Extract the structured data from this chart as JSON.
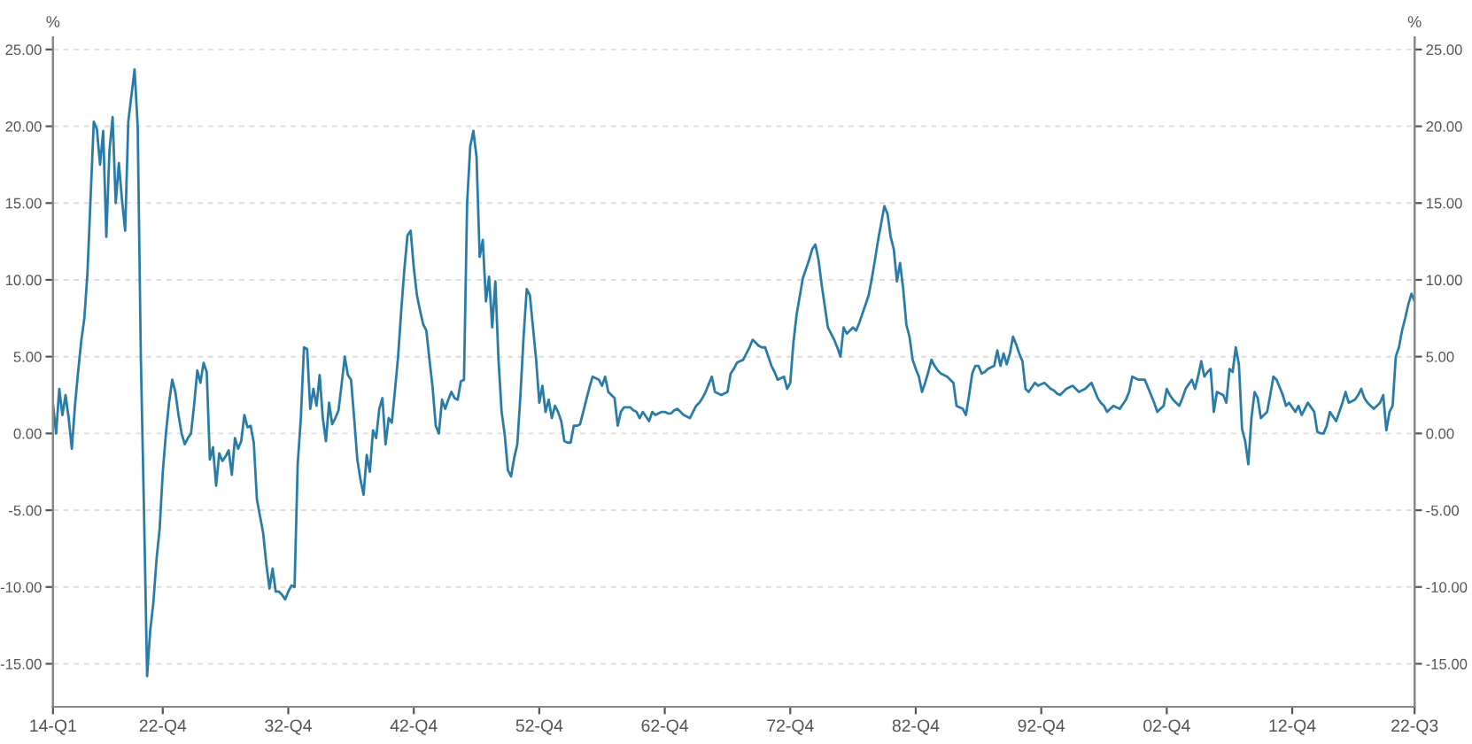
{
  "chart_data": {
    "type": "line",
    "ylabel": "%",
    "y2label": "%",
    "grid": "y",
    "line_style": "solid",
    "categories": [
      "14-Q1",
      null,
      null,
      null,
      null,
      null,
      null,
      null,
      null,
      null,
      null,
      null,
      null,
      null,
      null,
      null,
      null,
      null,
      null,
      null,
      null,
      null,
      null,
      null,
      null,
      null,
      null,
      null,
      null,
      null,
      null,
      null,
      null,
      null,
      null,
      "22-Q4",
      null,
      null,
      null,
      null,
      null,
      null,
      null,
      null,
      null,
      null,
      null,
      null,
      null,
      null,
      null,
      null,
      null,
      null,
      null,
      null,
      null,
      null,
      null,
      null,
      null,
      null,
      null,
      null,
      null,
      null,
      null,
      null,
      null,
      null,
      null,
      null,
      null,
      null,
      null,
      "32-Q4",
      null,
      null,
      null,
      null,
      null,
      null,
      null,
      null,
      null,
      null,
      null,
      null,
      null,
      null,
      null,
      null,
      null,
      null,
      null,
      null,
      null,
      null,
      null,
      null,
      null,
      null,
      null,
      null,
      null,
      null,
      null,
      null,
      null,
      null,
      null,
      null,
      null,
      null,
      null,
      "42-Q4",
      null,
      null,
      null,
      null,
      null,
      null,
      null,
      null,
      null,
      null,
      null,
      null,
      null,
      null,
      null,
      null,
      null,
      null,
      null,
      null,
      null,
      null,
      null,
      null,
      null,
      null,
      null,
      null,
      null,
      null,
      null,
      null,
      null,
      null,
      null,
      null,
      null,
      null,
      null,
      "52-Q4",
      null,
      null,
      null,
      null,
      null,
      null,
      null,
      null,
      null,
      null,
      null,
      null,
      null,
      null,
      null,
      null,
      null,
      null,
      null,
      null,
      null,
      null,
      null,
      null,
      null,
      null,
      null,
      null,
      null,
      null,
      null,
      null,
      null,
      null,
      null,
      null,
      null,
      null,
      null,
      "62-Q4",
      null,
      null,
      null,
      null,
      null,
      null,
      null,
      null,
      null,
      null,
      null,
      null,
      null,
      null,
      null,
      null,
      null,
      null,
      null,
      null,
      null,
      null,
      null,
      null,
      null,
      null,
      null,
      null,
      null,
      null,
      null,
      null,
      null,
      null,
      null,
      null,
      null,
      null,
      null,
      "72-Q4",
      null,
      null,
      null,
      null,
      null,
      null,
      null,
      null,
      null,
      null,
      null,
      null,
      null,
      null,
      null,
      null,
      null,
      null,
      null,
      null,
      null,
      null,
      null,
      null,
      null,
      null,
      null,
      null,
      null,
      null,
      null,
      null,
      null,
      null,
      null,
      null,
      null,
      null,
      null,
      "82-Q4",
      null,
      null,
      null,
      null,
      null,
      null,
      null,
      null,
      null,
      null,
      null,
      null,
      null,
      null,
      null,
      null,
      null,
      null,
      null,
      null,
      null,
      null,
      null,
      null,
      null,
      null,
      null,
      null,
      null,
      null,
      null,
      null,
      null,
      null,
      null,
      null,
      null,
      null,
      null,
      "92-Q4",
      null,
      null,
      null,
      null,
      null,
      null,
      null,
      null,
      null,
      null,
      null,
      null,
      null,
      null,
      null,
      null,
      null,
      null,
      null,
      null,
      null,
      null,
      null,
      null,
      null,
      null,
      null,
      null,
      null,
      null,
      null,
      null,
      null,
      null,
      null,
      null,
      null,
      null,
      null,
      "02-Q4",
      null,
      null,
      null,
      null,
      null,
      null,
      null,
      null,
      null,
      null,
      null,
      null,
      null,
      null,
      null,
      null,
      null,
      null,
      null,
      null,
      null,
      null,
      null,
      null,
      null,
      null,
      null,
      null,
      null,
      null,
      null,
      null,
      null,
      null,
      null,
      null,
      null,
      null,
      null,
      "12-Q4",
      null,
      null,
      null,
      null,
      null,
      null,
      null,
      null,
      null,
      null,
      null,
      null,
      null,
      null,
      null,
      null,
      null,
      null,
      null,
      null,
      null,
      null,
      null,
      null,
      null,
      null,
      null,
      null,
      null,
      null,
      null,
      null,
      null,
      null,
      null,
      null,
      null,
      null,
      "22-Q3"
    ],
    "ylim": [
      -17.8,
      25.8
    ],
    "yticks": [
      {
        "value": -15,
        "label": "-15.00"
      },
      {
        "value": -10,
        "label": "-10.00"
      },
      {
        "value": -5,
        "label": "-5.00"
      },
      {
        "value": 0,
        "label": "0.00"
      },
      {
        "value": 5,
        "label": "5.00"
      },
      {
        "value": 10,
        "label": "10.00"
      },
      {
        "value": 15,
        "label": "15.00"
      },
      {
        "value": 20,
        "label": "20.00"
      },
      {
        "value": 25,
        "label": "25.00"
      }
    ],
    "y2lim": [
      -17.8,
      25.8
    ],
    "y2ticks": [
      {
        "value": -15,
        "label": "-15.00"
      },
      {
        "value": -10,
        "label": "-10.00"
      },
      {
        "value": -5,
        "label": "-5.00"
      },
      {
        "value": 0,
        "label": "0.00"
      },
      {
        "value": 5,
        "label": "5.00"
      },
      {
        "value": 10,
        "label": "10.00"
      },
      {
        "value": 15,
        "label": "15.00"
      },
      {
        "value": 20,
        "label": "20.00"
      },
      {
        "value": 25,
        "label": "25.00"
      }
    ],
    "series": [
      {
        "color": "#2a7ca8",
        "values": [
          1.9,
          0,
          2.9,
          1.2,
          2.5,
          1.0,
          -1.0,
          1.8,
          4.0,
          6.0,
          7.5,
          10.5,
          15.4,
          20.3,
          19.8,
          17.5,
          19.7,
          12.8,
          18.4,
          20.6,
          15,
          17.6,
          15.2,
          13.2,
          20.3,
          22,
          23.7,
          20,
          5,
          -5,
          -15.8,
          -12.8,
          -11,
          -8.2,
          -6.2,
          -2.5,
          0,
          2,
          3.5,
          2.7,
          1.2,
          0,
          -0.7,
          -0.3,
          0,
          1.9,
          4.1,
          3.3,
          4.6,
          4,
          -1.7,
          -0.9,
          -3.4,
          -1.3,
          -1.8,
          -1.5,
          -1.1,
          -2.7,
          -0.3,
          -1,
          -0.5,
          1.2,
          0.4,
          0.5,
          -0.6,
          -4.3,
          -5.4,
          -6.5,
          -8.5,
          -10.1,
          -8.8,
          -10.3,
          -10.3,
          -10.5,
          -10.8,
          -10.3,
          -9.9,
          -10,
          -2,
          1,
          5.6,
          5.5,
          1.6,
          2.9,
          1.8,
          3.8,
          1,
          -0.5,
          2,
          0.6,
          1.0,
          1.5,
          3.2,
          5,
          3.8,
          3.5,
          1,
          -1.7,
          -3,
          -4.0,
          -1.4,
          -2.5,
          0.2,
          -0.3,
          1.6,
          2.3,
          -0.7,
          1,
          0.7,
          2.8,
          5,
          8,
          10.7,
          12.9,
          13.2,
          10.8,
          9,
          8,
          7.1,
          6.7,
          4.8,
          3,
          0.5,
          0,
          2.2,
          1.6,
          2.2,
          2.7,
          2.3,
          2.2,
          3.4,
          3.5,
          15,
          18.7,
          19.7,
          18.0,
          11.5,
          12.6,
          8.6,
          10.2,
          6.9,
          9.9,
          4.8,
          1.4,
          -0.1,
          -2.4,
          -2.8,
          -1.6,
          -0.7,
          2.5,
          6.3,
          9.4,
          9,
          6.9,
          4.8,
          2,
          3.1,
          1.4,
          2.2,
          1,
          1.8,
          1.4,
          0.8,
          -0.5,
          -0.6,
          -0.6,
          0.5,
          0.5,
          0.6,
          1.4,
          2.2,
          3,
          3.7,
          3.6,
          3.5,
          3.1,
          3.7,
          2.7,
          2.5,
          2.3,
          0.5,
          1.4,
          1.7,
          1.7,
          1.7,
          1.5,
          1.4,
          1,
          1.4,
          1.1,
          0.8,
          1.4,
          1.2,
          1.3,
          1.4,
          1.4,
          1.3,
          1.3,
          1.5,
          1.6,
          1.4,
          1.2,
          1.1,
          1,
          1.4,
          1.8,
          2,
          2.3,
          2.7,
          3.2,
          3.7,
          2.7,
          2.6,
          2.5,
          2.6,
          2.7,
          3.9,
          4.2,
          4.6,
          4.7,
          4.8,
          5.2,
          5.6,
          6.1,
          5.9,
          5.7,
          5.6,
          5.6,
          5,
          4.4,
          4.0,
          3.5,
          3.6,
          3.7,
          2.9,
          3.3,
          5.9,
          7.7,
          8.9,
          10.1,
          10.7,
          11.3,
          12,
          12.3,
          11.3,
          9.7,
          8.3,
          6.9,
          6.5,
          6.1,
          5.6,
          5.0,
          6.9,
          6.5,
          6.7,
          6.9,
          6.7,
          7.2,
          7.8,
          8.4,
          9,
          10.1,
          11.3,
          12.6,
          13.7,
          14.8,
          14.3,
          12.8,
          12,
          9.9,
          11.1,
          9.4,
          7.1,
          6.3,
          4.8,
          4.2,
          3.7,
          2.7,
          3.3,
          4.0,
          4.8,
          4.4,
          4.1,
          3.9,
          3.8,
          3.7,
          3.5,
          3.3,
          1.8,
          1.7,
          1.6,
          1.2,
          2.5,
          3.9,
          4.4,
          4.4,
          3.9,
          4.0,
          4.2,
          4.3,
          4.4,
          5.4,
          4.4,
          5.2,
          4.5,
          5.2,
          6.3,
          5.8,
          5.2,
          4.7,
          2.9,
          2.7,
          3.0,
          3.3,
          3.1,
          3.2,
          3.3,
          3.1,
          2.9,
          2.8,
          2.6,
          2.5,
          2.7,
          2.9,
          3.0,
          3.1,
          2.9,
          2.7,
          2.8,
          2.9,
          3.1,
          3.3,
          2.8,
          2.3,
          2.0,
          1.8,
          1.4,
          1.6,
          1.8,
          1.7,
          1.6,
          1.9,
          2.2,
          2.7,
          3.7,
          3.6,
          3.5,
          3.5,
          3.5,
          3.0,
          2.5,
          2.0,
          1.4,
          1.6,
          1.8,
          2.9,
          2.5,
          2.2,
          2.0,
          1.8,
          2.3,
          2.9,
          3.2,
          3.5,
          2.9,
          3.7,
          4.7,
          3.7,
          4.0,
          4.2,
          1.4,
          2.7,
          2.6,
          2.5,
          2.0,
          4.2,
          4.0,
          5.6,
          4.5,
          0.3,
          -0.5,
          -2.0,
          1.0,
          2.7,
          2.3,
          1.0,
          1.2,
          1.4,
          2.5,
          3.7,
          3.5,
          3.0,
          2.5,
          1.8,
          2.0,
          1.7,
          1.4,
          1.8,
          1.2,
          1.6,
          2.0,
          1.7,
          1.4,
          0.1,
          0,
          0,
          0.5,
          1.4,
          1.1,
          0.8,
          1.4,
          2.0,
          2.7,
          2.0,
          2.1,
          2.2,
          2.5,
          2.9,
          2.3,
          2.0,
          1.8,
          1.6,
          1.8,
          2.0,
          2.5,
          0.2,
          1.4,
          1.8,
          5.0,
          5.6,
          6.7,
          7.5,
          8.4,
          9.1,
          8.6
        ]
      }
    ]
  }
}
